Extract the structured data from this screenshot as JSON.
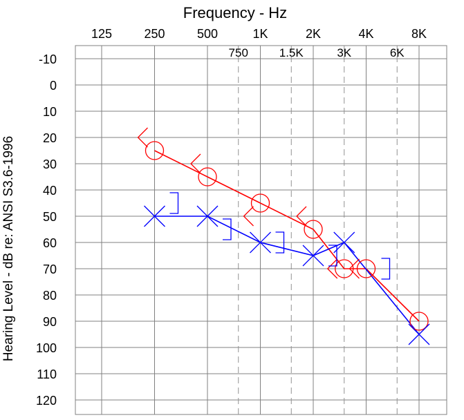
{
  "chart_data": {
    "type": "line",
    "title": "Frequency - Hz",
    "ylabel": "Hearing Level - dB  re: ANSI S3.6-1996",
    "x_scale": "log2",
    "xlim_hz": [
      125,
      8000
    ],
    "ylim": [
      -10,
      120
    ],
    "y_reversed": true,
    "octave_ticks": [
      {
        "hz": 125,
        "label": "125"
      },
      {
        "hz": 250,
        "label": "250"
      },
      {
        "hz": 500,
        "label": "500"
      },
      {
        "hz": 1000,
        "label": "1K"
      },
      {
        "hz": 2000,
        "label": "2K"
      },
      {
        "hz": 4000,
        "label": "4K"
      },
      {
        "hz": 8000,
        "label": "8K"
      }
    ],
    "interoctave_ticks": [
      {
        "hz": 750,
        "label": "750"
      },
      {
        "hz": 1500,
        "label": "1.5K"
      },
      {
        "hz": 3000,
        "label": "3K"
      },
      {
        "hz": 6000,
        "label": "6K"
      }
    ],
    "y_ticks": [
      -10,
      0,
      10,
      20,
      30,
      40,
      50,
      60,
      70,
      80,
      90,
      100,
      110,
      120
    ],
    "reference_marker": {
      "hz": 250,
      "db": 0,
      "symbol": "plus",
      "color": "#808080"
    },
    "series": [
      {
        "name": "Right ear air conduction",
        "symbol": "circle",
        "color": "#ff0000",
        "points": [
          {
            "hz": 250,
            "db": 25
          },
          {
            "hz": 500,
            "db": 35
          },
          {
            "hz": 1000,
            "db": 45
          },
          {
            "hz": 2000,
            "db": 55
          },
          {
            "hz": 3000,
            "db": 70
          },
          {
            "hz": 4000,
            "db": 70
          },
          {
            "hz": 8000,
            "db": 90
          }
        ]
      },
      {
        "name": "Right ear bone conduction",
        "symbol": "bracket-left",
        "color": "#ff0000",
        "connected": false,
        "points": [
          {
            "hz": 250,
            "db": 20
          },
          {
            "hz": 500,
            "db": 30
          },
          {
            "hz": 1000,
            "db": 50
          },
          {
            "hz": 2000,
            "db": 50
          },
          {
            "hz": 3000,
            "db": 70
          },
          {
            "hz": 4000,
            "db": 70
          }
        ]
      },
      {
        "name": "Left ear air conduction",
        "symbol": "x",
        "color": "#0000ff",
        "points": [
          {
            "hz": 250,
            "db": 50
          },
          {
            "hz": 500,
            "db": 50
          },
          {
            "hz": 1000,
            "db": 60
          },
          {
            "hz": 2000,
            "db": 65
          },
          {
            "hz": 3000,
            "db": 60
          },
          {
            "hz": 8000,
            "db": 95
          }
        ]
      },
      {
        "name": "Left ear bone conduction",
        "symbol": "bracket-right",
        "color": "#0000ff",
        "connected": false,
        "points": [
          {
            "hz": 250,
            "db": 45
          },
          {
            "hz": 500,
            "db": 55
          },
          {
            "hz": 1000,
            "db": 60
          },
          {
            "hz": 2000,
            "db": 65
          },
          {
            "hz": 4000,
            "db": 70
          }
        ]
      }
    ]
  }
}
